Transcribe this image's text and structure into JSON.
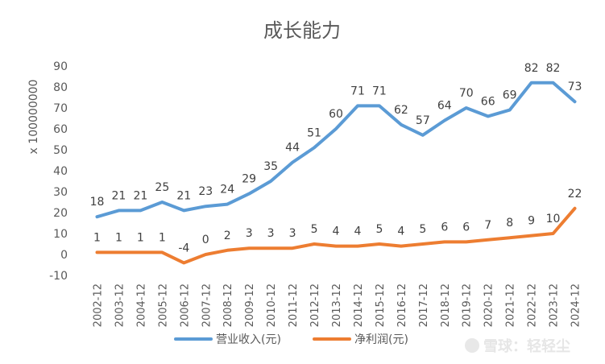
{
  "chart_data": {
    "type": "line",
    "title": "成长能力",
    "xlabel": "",
    "ylabel": "x 100000000",
    "ylim": [
      -10,
      90
    ],
    "yticks": [
      -10,
      0,
      10,
      20,
      30,
      40,
      50,
      60,
      70,
      80,
      90
    ],
    "grid": false,
    "legend_position": "bottom",
    "categories": [
      "2002-12",
      "2003-12",
      "2004-12",
      "2005-12",
      "2006-12",
      "2007-12",
      "2008-12",
      "2009-12",
      "2010-12",
      "2011-12",
      "2012-12",
      "2013-12",
      "2014-12",
      "2015-12",
      "2016-12",
      "2017-12",
      "2018-12",
      "2019-12",
      "2020-12",
      "2021-12",
      "2022-12",
      "2023-12",
      "2024-12"
    ],
    "series": [
      {
        "name": "营业收入(元)",
        "color": "#5B9BD5",
        "values": [
          18,
          21,
          21,
          25,
          21,
          23,
          24,
          29,
          35,
          44,
          51,
          60,
          71,
          71,
          62,
          57,
          64,
          70,
          66,
          69,
          82,
          82,
          73
        ]
      },
      {
        "name": "净利润(元)",
        "color": "#ED7D31",
        "values": [
          1,
          1,
          1,
          1,
          -4,
          0,
          2,
          3,
          3,
          3,
          5,
          4,
          4,
          5,
          4,
          5,
          6,
          6,
          7,
          8,
          9,
          10,
          22
        ]
      }
    ]
  },
  "watermark": {
    "text": "雪球：轻轻尘"
  }
}
